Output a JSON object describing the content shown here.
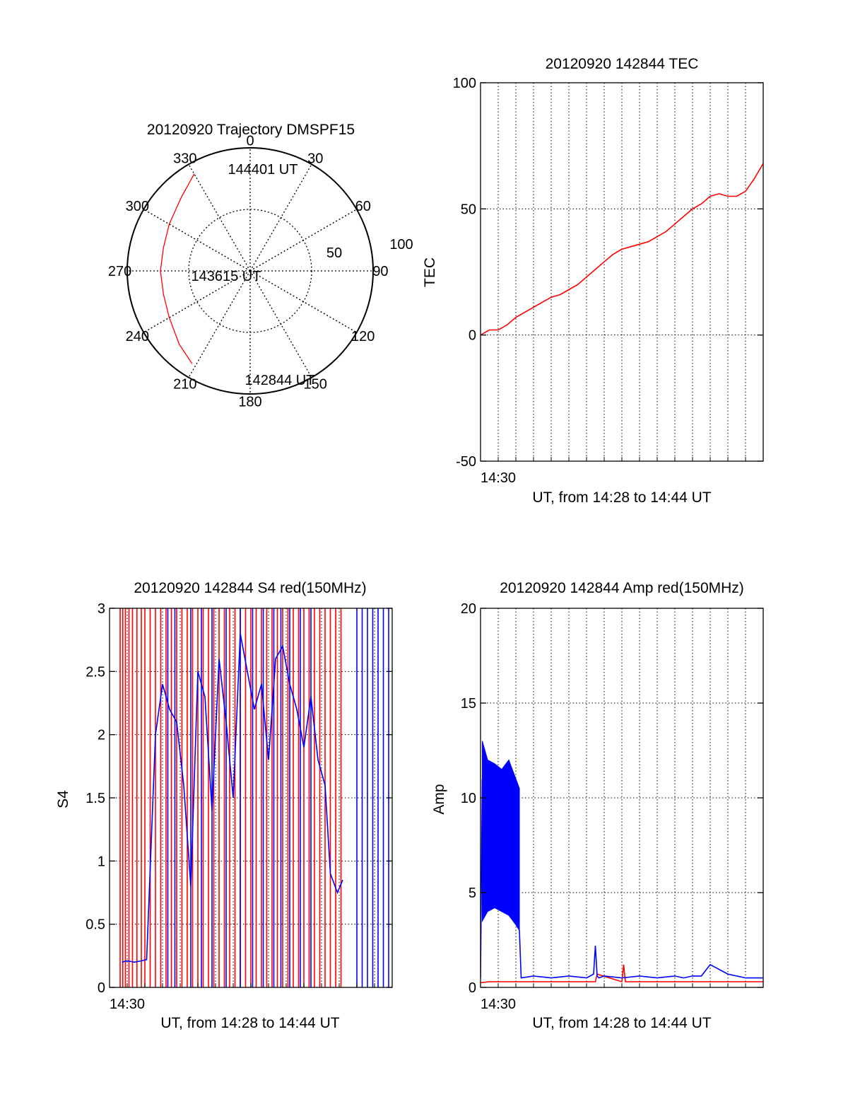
{
  "colors": {
    "red_series": "#ff0000",
    "blue_series": "#0000ff",
    "axis": "#000000",
    "grid": "#000000"
  },
  "chart_data": [
    {
      "type": "polar",
      "title": "20120920 Trajectory DMSPF15",
      "angle_labels": [
        "0",
        "30",
        "60",
        "90",
        "120",
        "150",
        "180",
        "210",
        "240",
        "270",
        "300",
        "330"
      ],
      "angles": [
        0,
        30,
        60,
        90,
        120,
        150,
        180,
        210,
        240,
        270,
        300,
        330
      ],
      "radial_labels": [
        "50",
        "100"
      ],
      "radial_ticks": [
        50,
        100
      ],
      "r_range": [
        0,
        100
      ],
      "grid": true,
      "series": [
        {
          "color": "#ff0000",
          "points": [
            {
              "az": 330,
              "r": 91
            },
            {
              "az": 317,
              "r": 82
            },
            {
              "az": 300,
              "r": 76
            },
            {
              "az": 285,
              "r": 73
            },
            {
              "az": 270,
              "r": 73
            },
            {
              "az": 255,
              "r": 73
            },
            {
              "az": 240,
              "r": 76
            },
            {
              "az": 224,
              "r": 83
            },
            {
              "az": 212,
              "r": 89
            }
          ]
        }
      ],
      "annotations": [
        {
          "text": "144401 UT",
          "az": 331,
          "r": 92
        },
        {
          "text": "143615 UT",
          "az": 270,
          "r": 9
        },
        {
          "text": "142844 UT",
          "az": 190,
          "r": 90
        }
      ]
    },
    {
      "type": "line",
      "title": "20120920 142844 TEC",
      "ylabel": "TEC",
      "xlabel": "UT, from 14:28 to 14:44 UT",
      "x_unit": "minutes after 14:28 UT",
      "xlim": [
        0,
        16
      ],
      "ylim": [
        -50,
        100
      ],
      "yticks": [
        -50,
        0,
        50,
        100
      ],
      "ytick_labels": [
        "-50",
        "0",
        "50",
        "100"
      ],
      "xticks": [
        1
      ],
      "xtick_labels": [
        "14:30"
      ],
      "grid": true,
      "series": [
        {
          "color": "#ff0000",
          "x": [
            0.0,
            0.5,
            1.0,
            1.5,
            2.0,
            2.5,
            3.0,
            3.5,
            4.0,
            4.5,
            5.0,
            5.5,
            6.0,
            6.5,
            7.0,
            7.5,
            8.0,
            8.5,
            9.0,
            9.5,
            10.0,
            10.5,
            11.0,
            11.5,
            12.0,
            12.5,
            13.0,
            13.5,
            14.0,
            14.5,
            15.0,
            15.5,
            16.0
          ],
          "y": [
            0,
            2,
            2,
            4,
            7,
            9,
            11,
            13,
            15,
            16,
            18,
            20,
            23,
            26,
            29,
            32,
            34,
            35,
            36,
            37,
            39,
            41,
            44,
            47,
            50,
            52,
            55,
            56,
            55,
            55,
            57,
            62,
            68
          ]
        }
      ]
    },
    {
      "type": "line",
      "title": "20120920 142844 S4 red(150MHz)",
      "ylabel": "S4",
      "xlabel": "UT, from 14:28 to 14:44 UT",
      "x_unit": "minutes after 14:28 UT",
      "xlim": [
        0,
        16
      ],
      "ylim": [
        0,
        3
      ],
      "yticks": [
        0,
        0.5,
        1,
        1.5,
        2,
        2.5,
        3
      ],
      "ytick_labels": [
        "0",
        "0.5",
        "1",
        "1.5",
        "2",
        "2.5",
        "3"
      ],
      "xticks": [
        1
      ],
      "xtick_labels": [
        "14:30"
      ],
      "grid": true,
      "series": [
        {
          "color": "#ff0000",
          "style": "spikes",
          "x": [
            0.6,
            0.75,
            0.9,
            1.1,
            1.3,
            1.55,
            1.8,
            2.0,
            2.3,
            2.6,
            2.9,
            3.2,
            3.5,
            3.8,
            4.1,
            4.4,
            4.7,
            5.0,
            5.3,
            5.6,
            5.9,
            6.2,
            6.5,
            6.8,
            7.1,
            7.4,
            7.7,
            8.0,
            8.3,
            8.6,
            8.9,
            9.2,
            9.5,
            9.8,
            10.1,
            10.4,
            10.7,
            11.0,
            11.3,
            11.6,
            11.9,
            12.2,
            12.5,
            12.8,
            13.1
          ],
          "y": [
            3,
            3,
            3,
            3,
            3,
            3,
            3,
            3,
            3,
            3,
            3,
            3,
            3,
            3,
            3,
            3,
            3,
            3,
            3,
            3,
            3,
            3,
            3,
            3,
            3,
            3,
            3,
            3,
            3,
            3,
            3,
            3,
            3,
            3,
            3,
            3,
            3,
            3,
            3,
            3,
            3,
            3,
            3,
            3,
            3
          ]
        },
        {
          "color": "#0000ff",
          "style": "spikes",
          "x": [
            3.3,
            3.7,
            4.6,
            5.2,
            5.8,
            6.6,
            7.4,
            8.1,
            8.7,
            9.3,
            9.7,
            10.2,
            10.8,
            11.4,
            14.0,
            14.3,
            14.6,
            14.9,
            15.2,
            15.5,
            15.8
          ],
          "y": [
            3,
            3,
            3,
            3,
            3,
            3,
            3,
            3,
            3,
            3,
            3,
            3,
            3,
            3,
            3,
            3,
            3,
            3,
            3,
            3,
            3
          ]
        },
        {
          "color": "#0000ff",
          "style": "line",
          "x": [
            0.7,
            1.0,
            1.4,
            1.8,
            2.1,
            2.6,
            3.0,
            3.4,
            3.8,
            4.2,
            4.6,
            5.0,
            5.4,
            5.8,
            6.2,
            6.6,
            7.0,
            7.4,
            7.8,
            8.2,
            8.6,
            9.0,
            9.4,
            9.8,
            10.2,
            10.6,
            11.0,
            11.4,
            11.8,
            12.2,
            12.5,
            12.9,
            13.2
          ],
          "y": [
            0.2,
            0.21,
            0.2,
            0.21,
            0.22,
            2.0,
            2.4,
            2.2,
            2.1,
            1.6,
            0.8,
            2.5,
            2.3,
            1.4,
            2.6,
            2.1,
            1.5,
            2.8,
            2.5,
            2.2,
            2.4,
            1.8,
            2.6,
            2.7,
            2.4,
            2.2,
            1.9,
            2.3,
            1.8,
            1.6,
            0.9,
            0.75,
            0.85
          ]
        }
      ]
    },
    {
      "type": "line",
      "title": "20120920 142844 Amp red(150MHz)",
      "ylabel": "Amp",
      "xlabel": "UT, from 14:28 to 14:44 UT",
      "x_unit": "minutes after 14:28 UT",
      "xlim": [
        0,
        16
      ],
      "ylim": [
        0,
        20
      ],
      "yticks": [
        0,
        5,
        10,
        15,
        20
      ],
      "ytick_labels": [
        "0",
        "5",
        "10",
        "15",
        "20"
      ],
      "xticks": [
        1
      ],
      "xtick_labels": [
        "14:30"
      ],
      "grid": true,
      "series": [
        {
          "color": "#ff0000",
          "style": "line",
          "x": [
            0.0,
            0.5,
            1.0,
            1.5,
            2.0,
            2.3,
            2.5,
            6.5,
            6.6,
            8.0,
            8.1,
            8.2,
            16.0
          ],
          "y": [
            0.25,
            0.3,
            0.3,
            0.3,
            0.3,
            0.3,
            0.3,
            0.3,
            0.7,
            0.3,
            1.2,
            0.3,
            0.3
          ]
        },
        {
          "color": "#0000ff",
          "style": "band",
          "x": [
            0.1,
            0.4,
            0.8,
            1.2,
            1.6,
            2.0,
            2.2
          ],
          "y_low": [
            3.5,
            4.0,
            4.2,
            4.0,
            3.8,
            3.3,
            3.0
          ],
          "y_high": [
            13.0,
            12.0,
            11.8,
            11.5,
            12.0,
            11.0,
            10.5
          ]
        },
        {
          "color": "#0000ff",
          "style": "line",
          "x": [
            0.0,
            0.1,
            2.2,
            2.3,
            3.0,
            4.0,
            5.0,
            6.0,
            6.4,
            6.5,
            6.6,
            6.7,
            7.0,
            8.0,
            9.0,
            10.0,
            11.0,
            11.5,
            12.0,
            12.5,
            13.0,
            14.0,
            15.0,
            16.0
          ],
          "y": [
            0.5,
            11.0,
            3.0,
            0.5,
            0.6,
            0.5,
            0.6,
            0.5,
            0.7,
            2.2,
            0.6,
            0.5,
            0.6,
            0.5,
            0.6,
            0.5,
            0.6,
            0.5,
            0.6,
            0.6,
            1.2,
            0.7,
            0.5,
            0.5
          ]
        }
      ]
    }
  ]
}
